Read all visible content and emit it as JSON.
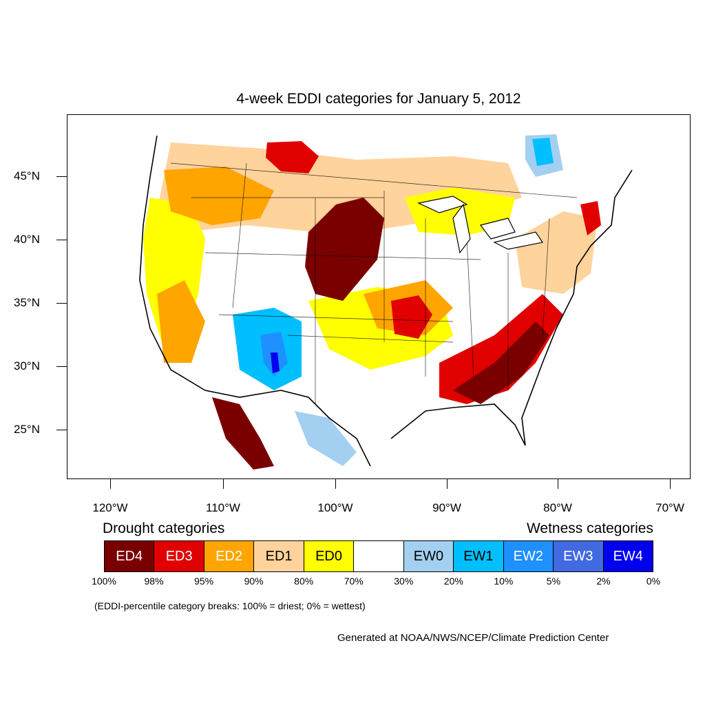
{
  "title": "4-week EDDI categories for January 5, 2012",
  "lat_labels": [
    "45°N",
    "40°N",
    "35°N",
    "30°N",
    "25°N"
  ],
  "lon_labels": [
    "120°W",
    "110°W",
    "100°W",
    "90°W",
    "80°W",
    "70°W"
  ],
  "legend": {
    "drought_title": "Drought categories",
    "wetness_title": "Wetness categories",
    "categories": [
      {
        "label": "ED4",
        "color": "#7a0000",
        "text_color": "#ffffff"
      },
      {
        "label": "ED3",
        "color": "#e00000",
        "text_color": "#ffffff"
      },
      {
        "label": "ED2",
        "color": "#ffa500",
        "text_color": "#ffffff"
      },
      {
        "label": "ED1",
        "color": "#ffd39b",
        "text_color": "#000000"
      },
      {
        "label": "ED0",
        "color": "#ffff00",
        "text_color": "#000000"
      },
      {
        "label": "",
        "color": "#ffffff",
        "text_color": "#000000"
      },
      {
        "label": "EW0",
        "color": "#a3d0f0",
        "text_color": "#000000"
      },
      {
        "label": "EW1",
        "color": "#00bfff",
        "text_color": "#000000"
      },
      {
        "label": "EW2",
        "color": "#1e90ff",
        "text_color": "#ffffff"
      },
      {
        "label": "EW3",
        "color": "#4169e1",
        "text_color": "#ffffff"
      },
      {
        "label": "EW4",
        "color": "#0000ee",
        "text_color": "#ffffff"
      }
    ],
    "percent_breaks": [
      "100%",
      "98%",
      "95%",
      "90%",
      "80%",
      "70%",
      "30%",
      "20%",
      "10%",
      "5%",
      "2%",
      "0%"
    ]
  },
  "note": "(EDDI-percentile category breaks: 100% = driest; 0% = wettest)",
  "credit": "Generated at NOAA/NWS/NCEP/Climate Prediction Center"
}
